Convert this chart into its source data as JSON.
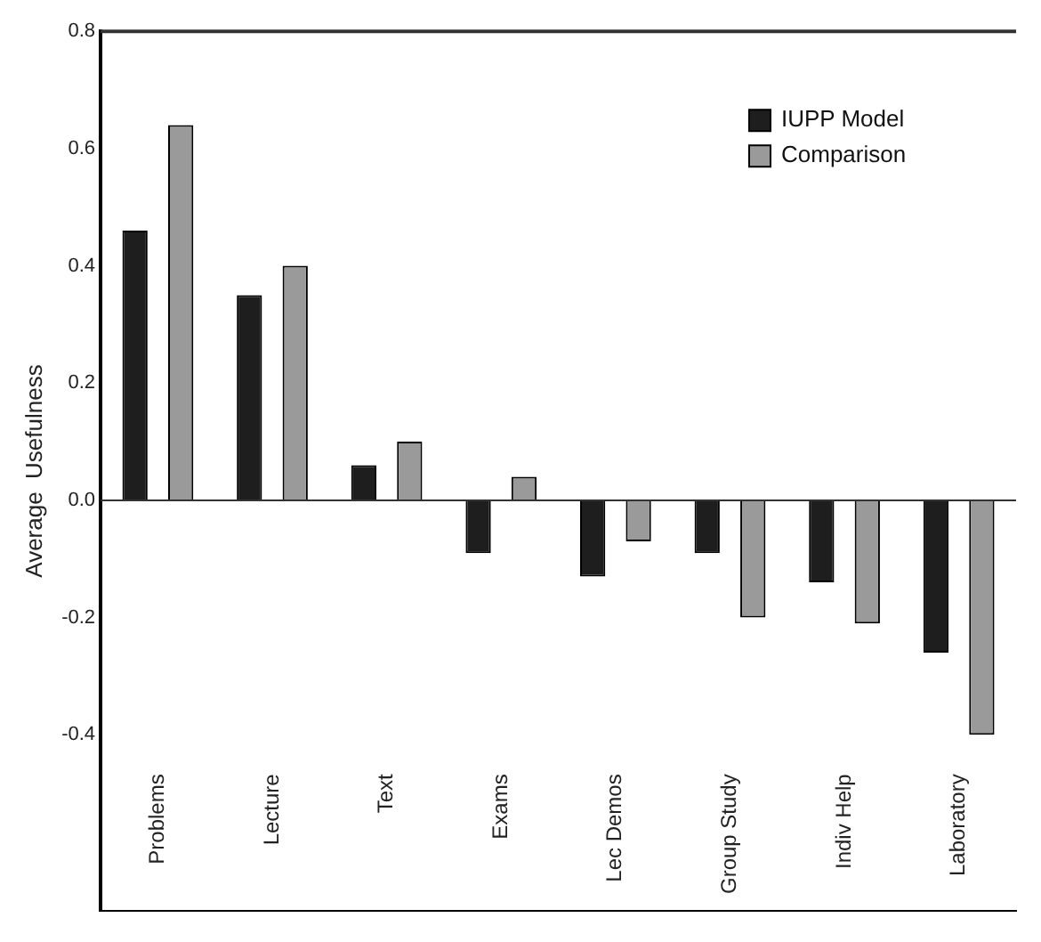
{
  "chart_data": {
    "type": "bar",
    "ylabel": "Average  Usefulness",
    "categories": [
      "Problems",
      "Lecture",
      "Text",
      "Exams",
      "Lec Demos",
      "Group Study",
      "Indiv Help",
      "Laboratory"
    ],
    "series": [
      {
        "name": "IUPP Model",
        "color": "#1e1e1e",
        "values": [
          0.46,
          0.35,
          0.06,
          -0.09,
          -0.13,
          -0.09,
          -0.14,
          -0.26
        ]
      },
      {
        "name": "Comparison",
        "color": "#9a9a9a",
        "values": [
          0.64,
          0.4,
          0.1,
          0.04,
          -0.07,
          -0.2,
          -0.21,
          -0.4
        ]
      }
    ],
    "ylim": [
      -0.7,
      0.8
    ],
    "yticks": [
      0.8,
      0.6,
      0.4,
      0.2,
      {
        "value": 0,
        "label": "0.0"
      },
      -0.2,
      -0.4
    ],
    "legend": "top right"
  }
}
